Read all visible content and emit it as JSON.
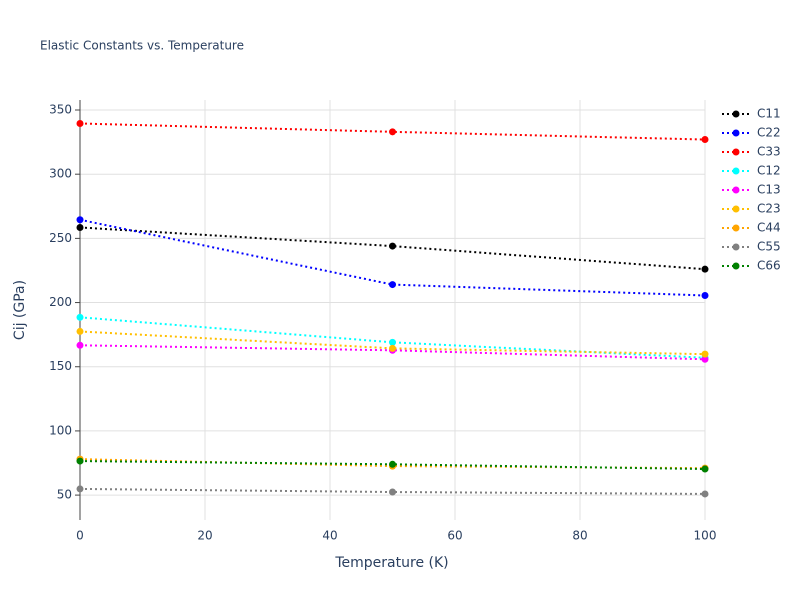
{
  "chart_data": {
    "type": "line",
    "title": "Elastic Constants vs. Temperature",
    "x_label": "Temperature (K)",
    "y_label": "Cij (GPa)",
    "x": [
      0,
      50,
      100
    ],
    "series": [
      {
        "name": "C11",
        "color": "#000000",
        "values": [
          258.5,
          244,
          226
        ]
      },
      {
        "name": "C22",
        "color": "#0000ff",
        "values": [
          264.5,
          214,
          205.5
        ]
      },
      {
        "name": "C33",
        "color": "#ff0000",
        "values": [
          339.5,
          333,
          327
        ]
      },
      {
        "name": "C12",
        "color": "#00ffff",
        "values": [
          188.5,
          169,
          157
        ]
      },
      {
        "name": "C13",
        "color": "#ff00ff",
        "values": [
          166.7,
          162.8,
          155.8
        ]
      },
      {
        "name": "C23",
        "color": "#ffbf00",
        "values": [
          177.5,
          164.3,
          159.8
        ]
      },
      {
        "name": "C44",
        "color": "#ffa500",
        "values": [
          78,
          72.6,
          71
        ]
      },
      {
        "name": "C55",
        "color": "#808080",
        "values": [
          54.8,
          52.4,
          50.9
        ]
      },
      {
        "name": "C66",
        "color": "#008000",
        "values": [
          76.5,
          74,
          70.3
        ]
      }
    ],
    "xlim": [
      0,
      100
    ],
    "xticks": [
      0,
      20,
      40,
      60,
      80,
      100
    ],
    "ylim": [
      30.6,
      357.8
    ],
    "yticks": [
      50,
      100,
      150,
      200,
      250,
      300,
      350
    ],
    "grid": true,
    "legend": "right"
  }
}
